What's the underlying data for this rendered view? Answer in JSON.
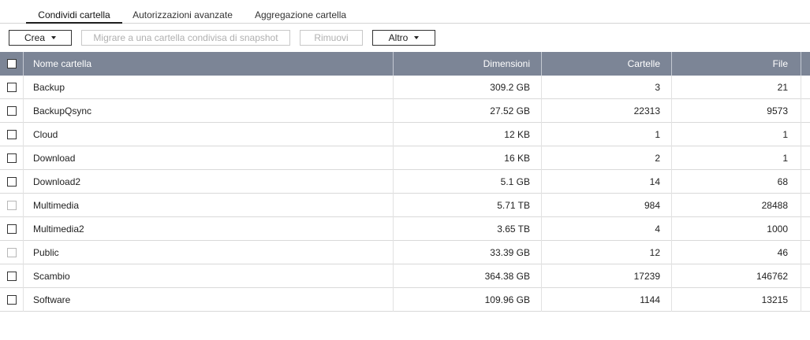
{
  "tabs": [
    {
      "label": "Condividi cartella",
      "active": true
    },
    {
      "label": "Autorizzazioni avanzate",
      "active": false
    },
    {
      "label": "Aggregazione cartella",
      "active": false
    }
  ],
  "toolbar": {
    "create_label": "Crea",
    "migrate_label": "Migrare a una cartella condivisa di snapshot",
    "remove_label": "Rimuovi",
    "more_label": "Altro"
  },
  "table": {
    "columns": {
      "name": "Nome cartella",
      "size": "Dimensioni",
      "folders": "Cartelle",
      "files": "File"
    },
    "rows": [
      {
        "name": "Backup",
        "size": "309.2 GB",
        "folders": "3",
        "files": "21",
        "checkbox_enabled": true
      },
      {
        "name": "BackupQsync",
        "size": "27.52 GB",
        "folders": "22313",
        "files": "9573",
        "checkbox_enabled": true
      },
      {
        "name": "Cloud",
        "size": "12 KB",
        "folders": "1",
        "files": "1",
        "checkbox_enabled": true
      },
      {
        "name": "Download",
        "size": "16 KB",
        "folders": "2",
        "files": "1",
        "checkbox_enabled": true
      },
      {
        "name": "Download2",
        "size": "5.1 GB",
        "folders": "14",
        "files": "68",
        "checkbox_enabled": true
      },
      {
        "name": "Multimedia",
        "size": "5.71 TB",
        "folders": "984",
        "files": "28488",
        "checkbox_enabled": false
      },
      {
        "name": "Multimedia2",
        "size": "3.65 TB",
        "folders": "4",
        "files": "1000",
        "checkbox_enabled": true
      },
      {
        "name": "Public",
        "size": "33.39 GB",
        "folders": "12",
        "files": "46",
        "checkbox_enabled": false
      },
      {
        "name": "Scambio",
        "size": "364.38 GB",
        "folders": "17239",
        "files": "146762",
        "checkbox_enabled": true
      },
      {
        "name": "Software",
        "size": "109.96 GB",
        "folders": "1144",
        "files": "13215",
        "checkbox_enabled": true
      }
    ]
  },
  "colors": {
    "header_bg": "#7c8596",
    "row_border": "#d9d9d9",
    "disabled_text": "#b0b0b0"
  }
}
